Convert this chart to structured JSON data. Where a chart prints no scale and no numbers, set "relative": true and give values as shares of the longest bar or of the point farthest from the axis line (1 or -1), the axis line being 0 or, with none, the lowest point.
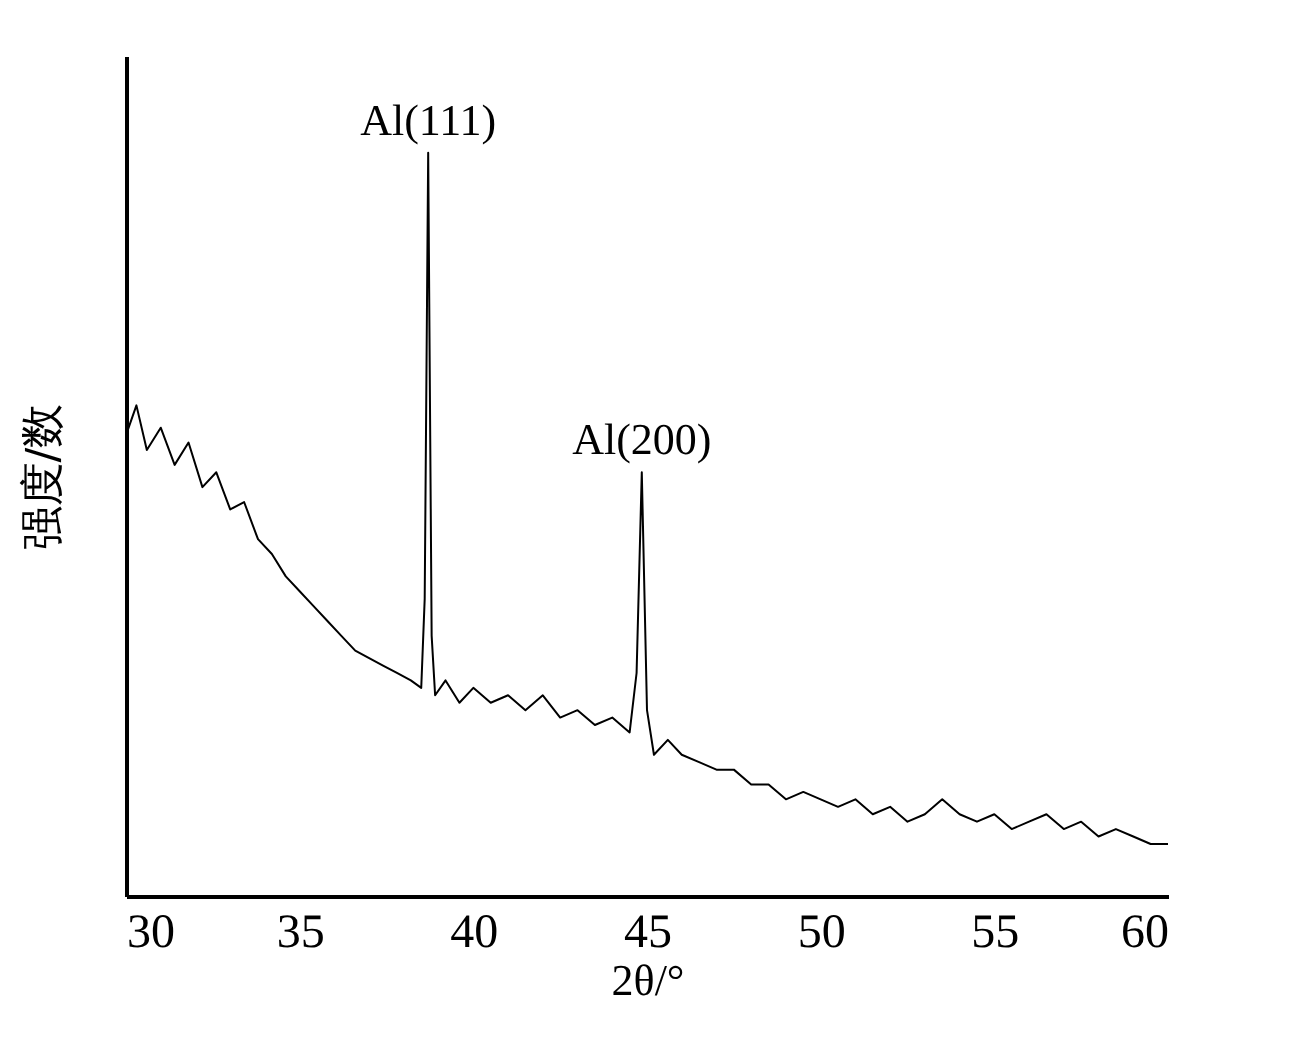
{
  "chart_data": {
    "type": "line",
    "relative": true,
    "xlabel": "2θ/°",
    "ylabel": "强度/数",
    "xlim": [
      30,
      60
    ],
    "xticks": [
      30,
      35,
      40,
      45,
      50,
      55,
      60
    ],
    "grid": false,
    "marker": "none",
    "line_style": "solid",
    "x": [
      30,
      30.3,
      30.6,
      31,
      31.4,
      31.8,
      32.2,
      32.6,
      33,
      33.4,
      33.8,
      34.2,
      34.6,
      35,
      35.4,
      35.8,
      36.2,
      36.6,
      37,
      37.4,
      37.8,
      38.2,
      38.5,
      38.6,
      38.7,
      38.8,
      38.9,
      39.2,
      39.6,
      40,
      40.5,
      41,
      41.5,
      42,
      42.5,
      43,
      43.5,
      44,
      44.5,
      44.7,
      44.85,
      45,
      45.2,
      45.6,
      46,
      46.5,
      47,
      47.5,
      48,
      48.5,
      49,
      49.5,
      50,
      50.5,
      51,
      51.5,
      52,
      52.5,
      53,
      53.5,
      54,
      54.5,
      55,
      55.5,
      56,
      56.5,
      57,
      57.5,
      58,
      58.5,
      59,
      59.5,
      60
    ],
    "series": [
      {
        "color": "#000000",
        "values": [
          0.62,
          0.66,
          0.6,
          0.63,
          0.58,
          0.61,
          0.55,
          0.57,
          0.52,
          0.53,
          0.48,
          0.46,
          0.43,
          0.41,
          0.39,
          0.37,
          0.35,
          0.33,
          0.32,
          0.31,
          0.3,
          0.29,
          0.28,
          0.4,
          1,
          0.35,
          0.27,
          0.29,
          0.26,
          0.28,
          0.26,
          0.27,
          0.25,
          0.27,
          0.24,
          0.25,
          0.23,
          0.24,
          0.22,
          0.3,
          0.57,
          0.25,
          0.19,
          0.21,
          0.19,
          0.18,
          0.17,
          0.17,
          0.15,
          0.15,
          0.13,
          0.14,
          0.13,
          0.12,
          0.13,
          0.11,
          0.12,
          0.1,
          0.11,
          0.13,
          0.11,
          0.1,
          0.11,
          0.09,
          0.1,
          0.11,
          0.09,
          0.1,
          0.08,
          0.09,
          0.08,
          0.07,
          0.07
        ]
      }
    ],
    "annotations": [
      {
        "text": "Al(111)",
        "x": 38.7,
        "y": 1
      },
      {
        "text": "Al(200)",
        "x": 44.85,
        "y": 0.57
      }
    ]
  }
}
